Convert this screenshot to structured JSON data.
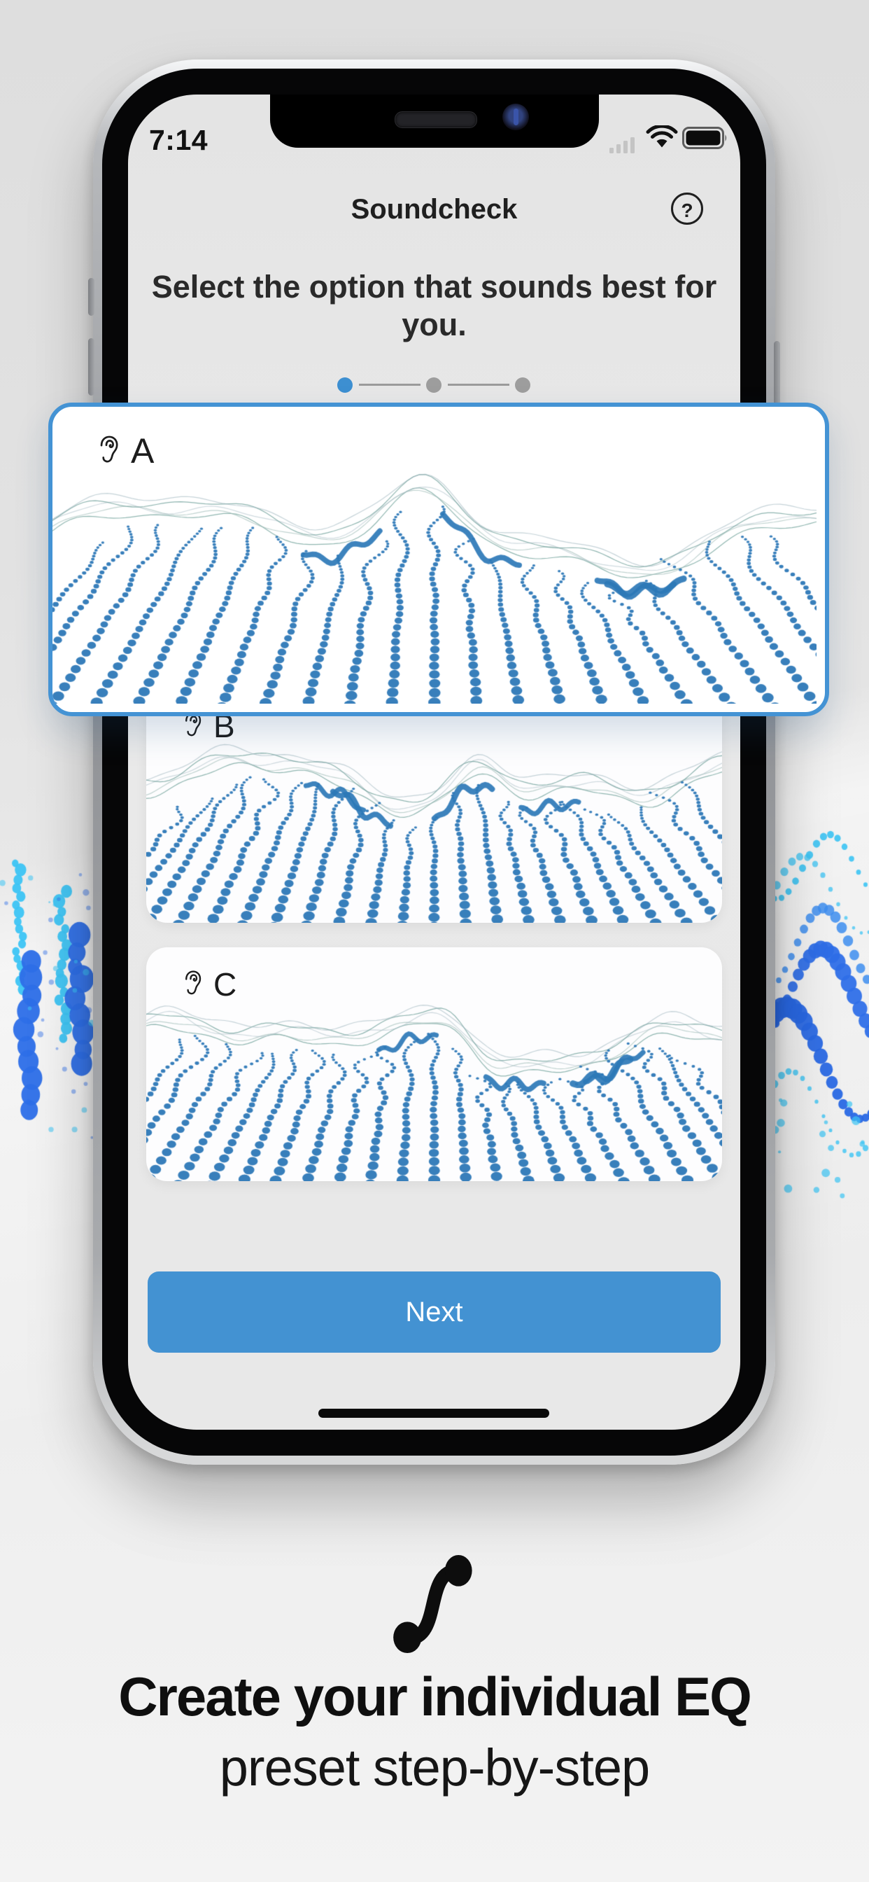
{
  "status": {
    "time": "7:14"
  },
  "header": {
    "title": "Soundcheck",
    "help_glyph": "?"
  },
  "instruction": {
    "text": "Select the option that sounds best for you."
  },
  "stepper": {
    "steps": 3,
    "active_step": 1
  },
  "options": [
    {
      "label": "A",
      "selected": true
    },
    {
      "label": "B",
      "selected": false
    },
    {
      "label": "C",
      "selected": false
    }
  ],
  "next_button": {
    "label": "Next"
  },
  "caption": {
    "title": "Create your individual EQ",
    "subtitle": "preset step-by-step"
  },
  "colors": {
    "accent_blue": "#4392d2",
    "selected_border": "#4493d4",
    "wave_dot_blue": "#2d78b7",
    "decor_cyan": "#3cc4f4",
    "decor_blue": "#2f6fe8"
  }
}
